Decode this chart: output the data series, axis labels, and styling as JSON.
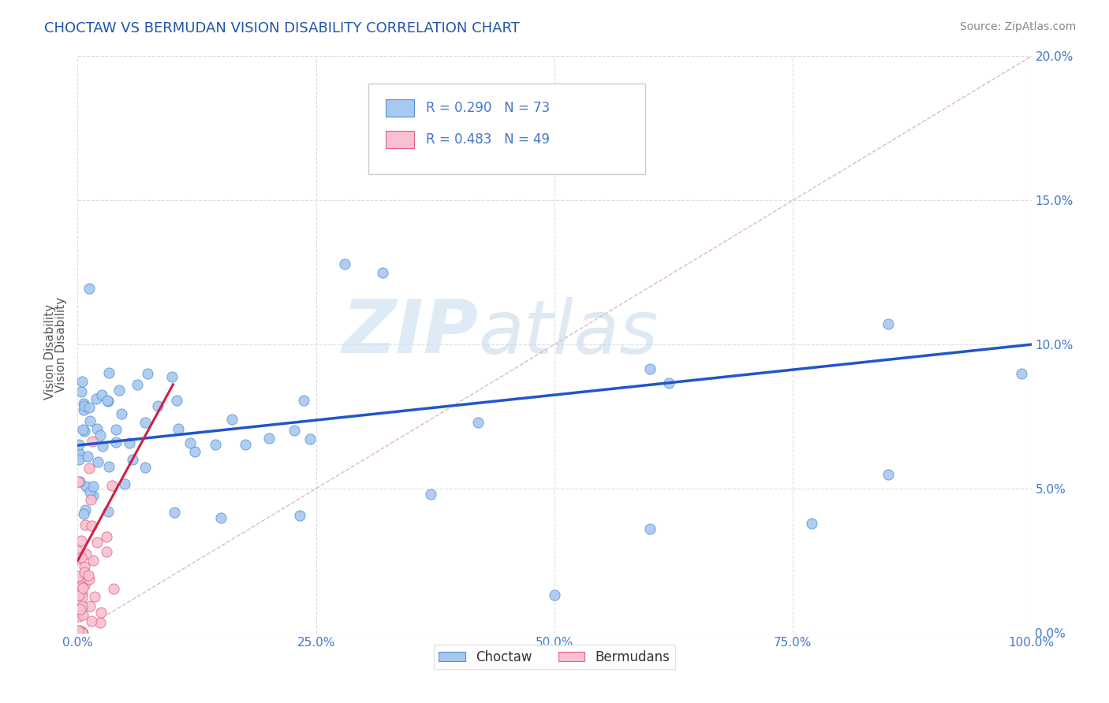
{
  "title": "CHOCTAW VS BERMUDAN VISION DISABILITY CORRELATION CHART",
  "source": "Source: ZipAtlas.com",
  "ylabel": "Vision Disability",
  "watermark_zip": "ZIP",
  "watermark_atlas": "atlas",
  "legend_choctaw": "Choctaw",
  "legend_bermudans": "Bermudans",
  "choctaw_R": 0.29,
  "choctaw_N": 73,
  "bermudans_R": 0.483,
  "bermudans_N": 49,
  "choctaw_color": "#a8c8f0",
  "choctaw_edge_color": "#5090d0",
  "choctaw_line_color": "#2255cc",
  "bermudans_color": "#f8c0d0",
  "bermudans_edge_color": "#e06080",
  "bermudans_line_color": "#cc2244",
  "diagonal_color": "#ddbbbb",
  "title_color": "#2255aa",
  "tick_color": "#4477cc",
  "source_color": "#888888",
  "ylabel_color": "#555555",
  "background_color": "#ffffff",
  "grid_color": "#dddddd",
  "xlim": [
    0.0,
    1.0
  ],
  "ylim": [
    0.0,
    0.2
  ],
  "x_ticks": [
    0.0,
    0.25,
    0.5,
    0.75,
    1.0
  ],
  "x_labels": [
    "0.0%",
    "25.0%",
    "50.0%",
    "75.0%",
    "100.0%"
  ],
  "y_ticks": [
    0.0,
    0.05,
    0.1,
    0.15,
    0.2
  ],
  "y_labels": [
    "0.0%",
    "5.0%",
    "10.0%",
    "15.0%",
    "20.0%"
  ],
  "choctaw_trend_x0": 0.0,
  "choctaw_trend_y0": 0.065,
  "choctaw_trend_x1": 1.0,
  "choctaw_trend_y1": 0.1,
  "bermudans_trend_x0": 0.0,
  "bermudans_trend_y0": 0.025,
  "bermudans_trend_x1": 0.09,
  "bermudans_trend_y1": 0.08
}
